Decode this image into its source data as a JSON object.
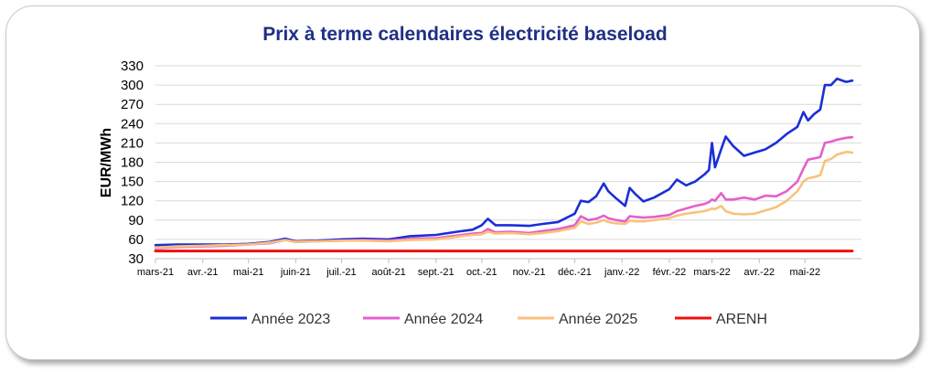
{
  "chart_data": {
    "type": "line",
    "title": "Prix à terme calendaires électricité baseload",
    "ylabel": "EUR/MWh",
    "xlabel": "",
    "ylim": [
      30,
      330
    ],
    "yticks": [
      30,
      60,
      90,
      120,
      150,
      180,
      210,
      240,
      270,
      300,
      330
    ],
    "xlim": [
      "2021-03-01",
      "2022-06-07"
    ],
    "xticks": [
      "2021-03-01",
      "2021-04-01",
      "2021-05-01",
      "2021-06-01",
      "2021-07-01",
      "2021-08-01",
      "2021-09-01",
      "2021-10-01",
      "2021-11-01",
      "2021-12-01",
      "2022-01-01",
      "2022-02-01",
      "2022-03-01",
      "2022-04-01",
      "2022-05-01"
    ],
    "xtick_labels": [
      "mars-21",
      "avr.-21",
      "mai-21",
      "juin-21",
      "juil.-21",
      "août-21",
      "sept.-21",
      "oct.-21",
      "nov.-21",
      "déc.-21",
      "janv.-22",
      "févr.-22",
      "mars-22",
      "avr.-22",
      "mai-22"
    ],
    "grid": "horizontal",
    "legend_position": "bottom",
    "series": [
      {
        "name": "Année 2023",
        "color": "#1a2fd6",
        "points": [
          [
            "2021-03-01",
            51
          ],
          [
            "2021-03-15",
            52
          ],
          [
            "2021-04-01",
            52
          ],
          [
            "2021-04-15",
            52
          ],
          [
            "2021-05-01",
            53
          ],
          [
            "2021-05-15",
            56
          ],
          [
            "2021-05-25",
            61
          ],
          [
            "2021-06-01",
            57
          ],
          [
            "2021-06-15",
            58
          ],
          [
            "2021-07-01",
            60
          ],
          [
            "2021-07-15",
            61
          ],
          [
            "2021-08-01",
            60
          ],
          [
            "2021-08-15",
            65
          ],
          [
            "2021-09-01",
            67
          ],
          [
            "2021-09-15",
            72
          ],
          [
            "2021-09-25",
            75
          ],
          [
            "2021-10-01",
            82
          ],
          [
            "2021-10-05",
            92
          ],
          [
            "2021-10-10",
            82
          ],
          [
            "2021-10-20",
            82
          ],
          [
            "2021-11-01",
            81
          ],
          [
            "2021-11-10",
            84
          ],
          [
            "2021-11-20",
            87
          ],
          [
            "2021-12-01",
            100
          ],
          [
            "2021-12-05",
            120
          ],
          [
            "2021-12-10",
            118
          ],
          [
            "2021-12-15",
            127
          ],
          [
            "2021-12-20",
            147
          ],
          [
            "2021-12-23",
            135
          ],
          [
            "2021-12-28",
            124
          ],
          [
            "2022-01-03",
            112
          ],
          [
            "2022-01-06",
            140
          ],
          [
            "2022-01-10",
            130
          ],
          [
            "2022-01-15",
            119
          ],
          [
            "2022-01-22",
            125
          ],
          [
            "2022-02-01",
            138
          ],
          [
            "2022-02-06",
            153
          ],
          [
            "2022-02-12",
            144
          ],
          [
            "2022-02-18",
            150
          ],
          [
            "2022-02-24",
            161
          ],
          [
            "2022-02-27",
            168
          ],
          [
            "2022-03-01",
            210
          ],
          [
            "2022-03-03",
            172
          ],
          [
            "2022-03-07",
            200
          ],
          [
            "2022-03-10",
            220
          ],
          [
            "2022-03-15",
            205
          ],
          [
            "2022-03-22",
            190
          ],
          [
            "2022-03-29",
            195
          ],
          [
            "2022-04-05",
            200
          ],
          [
            "2022-04-12",
            210
          ],
          [
            "2022-04-19",
            224
          ],
          [
            "2022-04-26",
            235
          ],
          [
            "2022-04-30",
            258
          ],
          [
            "2022-05-03",
            245
          ],
          [
            "2022-05-07",
            255
          ],
          [
            "2022-05-11",
            262
          ],
          [
            "2022-05-14",
            300
          ],
          [
            "2022-05-18",
            300
          ],
          [
            "2022-05-22",
            310
          ],
          [
            "2022-05-28",
            305
          ],
          [
            "2022-06-01",
            307
          ]
        ]
      },
      {
        "name": "Année 2024",
        "color": "#e460cc",
        "points": [
          [
            "2021-03-01",
            46
          ],
          [
            "2021-03-15",
            48
          ],
          [
            "2021-04-01",
            49
          ],
          [
            "2021-04-15",
            50
          ],
          [
            "2021-05-01",
            52
          ],
          [
            "2021-05-15",
            54
          ],
          [
            "2021-05-25",
            59
          ],
          [
            "2021-06-01",
            56
          ],
          [
            "2021-06-15",
            57
          ],
          [
            "2021-07-01",
            58
          ],
          [
            "2021-07-15",
            59
          ],
          [
            "2021-08-01",
            58
          ],
          [
            "2021-08-15",
            61
          ],
          [
            "2021-09-01",
            62
          ],
          [
            "2021-09-15",
            66
          ],
          [
            "2021-09-25",
            69
          ],
          [
            "2021-10-01",
            70
          ],
          [
            "2021-10-05",
            76
          ],
          [
            "2021-10-10",
            71
          ],
          [
            "2021-10-20",
            72
          ],
          [
            "2021-11-01",
            70
          ],
          [
            "2021-11-10",
            73
          ],
          [
            "2021-11-20",
            76
          ],
          [
            "2021-12-01",
            82
          ],
          [
            "2021-12-05",
            96
          ],
          [
            "2021-12-10",
            90
          ],
          [
            "2021-12-15",
            92
          ],
          [
            "2021-12-20",
            97
          ],
          [
            "2021-12-23",
            93
          ],
          [
            "2021-12-28",
            90
          ],
          [
            "2022-01-03",
            88
          ],
          [
            "2022-01-06",
            96
          ],
          [
            "2022-01-10",
            95
          ],
          [
            "2022-01-15",
            94
          ],
          [
            "2022-01-22",
            95
          ],
          [
            "2022-02-01",
            98
          ],
          [
            "2022-02-06",
            104
          ],
          [
            "2022-02-12",
            108
          ],
          [
            "2022-02-18",
            112
          ],
          [
            "2022-02-24",
            115
          ],
          [
            "2022-02-27",
            118
          ],
          [
            "2022-03-01",
            122
          ],
          [
            "2022-03-03",
            120
          ],
          [
            "2022-03-07",
            132
          ],
          [
            "2022-03-10",
            122
          ],
          [
            "2022-03-15",
            122
          ],
          [
            "2022-03-22",
            125
          ],
          [
            "2022-03-29",
            122
          ],
          [
            "2022-04-05",
            128
          ],
          [
            "2022-04-12",
            127
          ],
          [
            "2022-04-19",
            135
          ],
          [
            "2022-04-26",
            150
          ],
          [
            "2022-04-30",
            170
          ],
          [
            "2022-05-03",
            184
          ],
          [
            "2022-05-07",
            186
          ],
          [
            "2022-05-11",
            188
          ],
          [
            "2022-05-14",
            210
          ],
          [
            "2022-05-18",
            212
          ],
          [
            "2022-05-22",
            215
          ],
          [
            "2022-05-28",
            218
          ],
          [
            "2022-06-01",
            219
          ]
        ]
      },
      {
        "name": "Année 2025",
        "color": "#f9c27a",
        "points": [
          [
            "2021-03-01",
            47
          ],
          [
            "2021-03-15",
            49
          ],
          [
            "2021-04-01",
            50
          ],
          [
            "2021-04-15",
            51
          ],
          [
            "2021-05-01",
            52
          ],
          [
            "2021-05-15",
            55
          ],
          [
            "2021-05-25",
            59
          ],
          [
            "2021-06-01",
            56
          ],
          [
            "2021-06-15",
            57
          ],
          [
            "2021-07-01",
            58
          ],
          [
            "2021-07-15",
            58
          ],
          [
            "2021-08-01",
            57
          ],
          [
            "2021-08-15",
            59
          ],
          [
            "2021-09-01",
            60
          ],
          [
            "2021-09-15",
            64
          ],
          [
            "2021-09-25",
            67
          ],
          [
            "2021-10-01",
            68
          ],
          [
            "2021-10-05",
            72
          ],
          [
            "2021-10-10",
            69
          ],
          [
            "2021-10-20",
            70
          ],
          [
            "2021-11-01",
            68
          ],
          [
            "2021-11-10",
            70
          ],
          [
            "2021-11-20",
            73
          ],
          [
            "2021-12-01",
            78
          ],
          [
            "2021-12-05",
            88
          ],
          [
            "2021-12-10",
            84
          ],
          [
            "2021-12-15",
            86
          ],
          [
            "2021-12-20",
            90
          ],
          [
            "2021-12-23",
            87
          ],
          [
            "2021-12-28",
            85
          ],
          [
            "2022-01-03",
            84
          ],
          [
            "2022-01-06",
            89
          ],
          [
            "2022-01-10",
            88
          ],
          [
            "2022-01-15",
            88
          ],
          [
            "2022-01-22",
            90
          ],
          [
            "2022-02-01",
            93
          ],
          [
            "2022-02-06",
            97
          ],
          [
            "2022-02-12",
            100
          ],
          [
            "2022-02-18",
            102
          ],
          [
            "2022-02-24",
            104
          ],
          [
            "2022-02-27",
            106
          ],
          [
            "2022-03-01",
            108
          ],
          [
            "2022-03-03",
            107
          ],
          [
            "2022-03-07",
            112
          ],
          [
            "2022-03-10",
            104
          ],
          [
            "2022-03-15",
            100
          ],
          [
            "2022-03-22",
            99
          ],
          [
            "2022-03-29",
            100
          ],
          [
            "2022-04-05",
            105
          ],
          [
            "2022-04-12",
            110
          ],
          [
            "2022-04-19",
            120
          ],
          [
            "2022-04-26",
            135
          ],
          [
            "2022-04-30",
            150
          ],
          [
            "2022-05-03",
            155
          ],
          [
            "2022-05-07",
            157
          ],
          [
            "2022-05-11",
            160
          ],
          [
            "2022-05-14",
            182
          ],
          [
            "2022-05-18",
            185
          ],
          [
            "2022-05-22",
            192
          ],
          [
            "2022-05-28",
            196
          ],
          [
            "2022-06-01",
            195
          ]
        ]
      },
      {
        "name": "ARENH",
        "color": "#ee1010",
        "points": [
          [
            "2021-03-01",
            42
          ],
          [
            "2022-06-01",
            42
          ]
        ]
      }
    ]
  }
}
